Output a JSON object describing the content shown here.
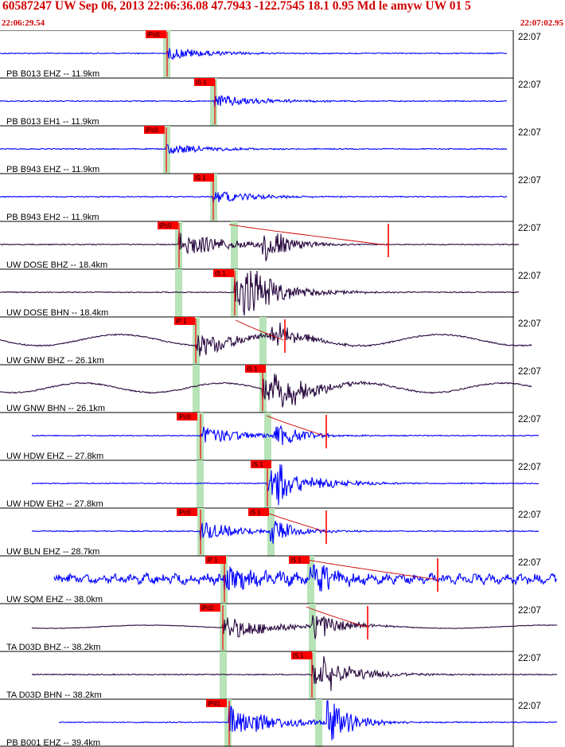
{
  "header": {
    "title": "60587247 UW Sep 06, 2013 22:06:36.08   47.7943 -122.7545 18.1 0.95 Md le amyw UW 01   5",
    "time_start": "22:06:29.54",
    "time_end": "22:07:02.95"
  },
  "colors": {
    "header_text": "#d00000",
    "blue_trace": "#0000ff",
    "dark_trace": "#2a0a40",
    "pick_box": "#ff0000",
    "pick_window": "#b8e3b8",
    "coda_line": "#cc0000",
    "grid_line": "#000000"
  },
  "traces": [
    {
      "label": "PB B013 EHZ -- 11.9km",
      "time_label": "22:07",
      "pick": "iPc0",
      "color": "blue"
    },
    {
      "label": "PB B013 EH1 -- 11.9km",
      "time_label": "22:07",
      "pick": "iS 1",
      "color": "blue"
    },
    {
      "label": "PB B943 EHZ -- 11.9km",
      "time_label": "22:07",
      "pick": "iPc0",
      "color": "blue"
    },
    {
      "label": "PB B943 EH2 -- 11.9km",
      "time_label": "22:07",
      "pick": "iS 1",
      "color": "blue"
    },
    {
      "label": "UW DOSE BHZ -- 18.4km",
      "time_label": "22:07",
      "pick": "iPc0",
      "color": "dark"
    },
    {
      "label": "UW DOSE BHN -- 18.4km",
      "time_label": "22:07",
      "pick": "iS 1",
      "color": "dark"
    },
    {
      "label": "UW GNW BHZ -- 26.1km",
      "time_label": "22:07",
      "pick": "iP 1",
      "color": "dark"
    },
    {
      "label": "UW GNW BHN -- 26.1km",
      "time_label": "22:07",
      "pick": "iS 1",
      "color": "dark"
    },
    {
      "label": "UW HDW EHZ -- 27.8km",
      "time_label": "22:07",
      "pick": "iPc0",
      "color": "blue"
    },
    {
      "label": "UW HDW EH2 -- 27.8km",
      "time_label": "22:07",
      "pick": "iS 1",
      "color": "blue"
    },
    {
      "label": "UW BLN EHZ -- 28.7km",
      "time_label": "22:07",
      "pick": "iPc0",
      "pick2": "iS 1",
      "color": "blue"
    },
    {
      "label": "UW SQM EHZ -- 38.0km",
      "time_label": "22:07",
      "pick": "iP 1",
      "pick2": "iS 1",
      "color": "blue"
    },
    {
      "label": "TA D03D BHZ -- 38.2km",
      "time_label": "22:07",
      "pick": "iPc0",
      "color": "dark"
    },
    {
      "label": "TA D03D BHN -- 38.2km",
      "time_label": "22:07",
      "pick": "iS 1",
      "color": "dark"
    },
    {
      "label": "PB B001 EHZ -- 39.4km",
      "time_label": "22:07",
      "pick": "iPd1",
      "color": "blue"
    }
  ]
}
